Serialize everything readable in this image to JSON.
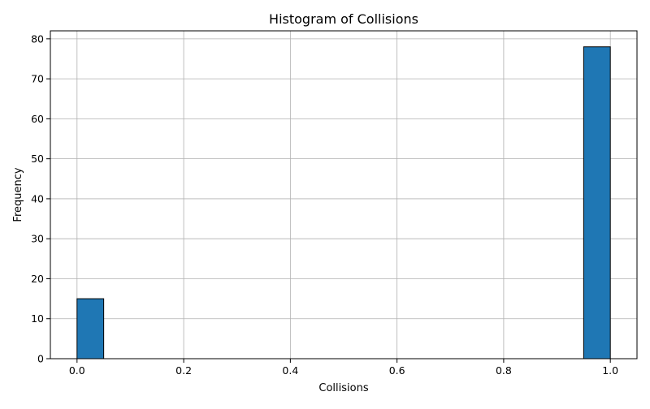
{
  "chart_data": {
    "type": "bar",
    "title": "Histogram of Collisions",
    "xlabel": "Collisions",
    "ylabel": "Frequency",
    "xlim": [
      -0.05,
      1.05
    ],
    "ylim": [
      0,
      82
    ],
    "x_ticks": [
      0.0,
      0.2,
      0.4,
      0.6,
      0.8,
      1.0
    ],
    "x_tick_labels": [
      "0.0",
      "0.2",
      "0.4",
      "0.6",
      "0.8",
      "1.0"
    ],
    "y_ticks": [
      0,
      10,
      20,
      30,
      40,
      50,
      60,
      70,
      80
    ],
    "y_tick_labels": [
      "0",
      "10",
      "20",
      "30",
      "40",
      "50",
      "60",
      "70",
      "80"
    ],
    "bins": [
      {
        "x0": 0.0,
        "x1": 0.05,
        "count": 15
      },
      {
        "x0": 0.05,
        "x1": 0.1,
        "count": 0
      },
      {
        "x0": 0.1,
        "x1": 0.15,
        "count": 0
      },
      {
        "x0": 0.15,
        "x1": 0.2,
        "count": 0
      },
      {
        "x0": 0.2,
        "x1": 0.25,
        "count": 0
      },
      {
        "x0": 0.25,
        "x1": 0.3,
        "count": 0
      },
      {
        "x0": 0.3,
        "x1": 0.35,
        "count": 0
      },
      {
        "x0": 0.35,
        "x1": 0.4,
        "count": 0
      },
      {
        "x0": 0.4,
        "x1": 0.45,
        "count": 0
      },
      {
        "x0": 0.45,
        "x1": 0.5,
        "count": 0
      },
      {
        "x0": 0.5,
        "x1": 0.55,
        "count": 0
      },
      {
        "x0": 0.55,
        "x1": 0.6,
        "count": 0
      },
      {
        "x0": 0.6,
        "x1": 0.65,
        "count": 0
      },
      {
        "x0": 0.65,
        "x1": 0.7,
        "count": 0
      },
      {
        "x0": 0.7,
        "x1": 0.75,
        "count": 0
      },
      {
        "x0": 0.75,
        "x1": 0.8,
        "count": 0
      },
      {
        "x0": 0.8,
        "x1": 0.85,
        "count": 0
      },
      {
        "x0": 0.85,
        "x1": 0.9,
        "count": 0
      },
      {
        "x0": 0.9,
        "x1": 0.95,
        "count": 0
      },
      {
        "x0": 0.95,
        "x1": 1.0,
        "count": 78
      }
    ],
    "grid": true,
    "bar_color": "#1f77b4",
    "edge_color": "#000000",
    "grid_color": "#b0b0b0"
  }
}
